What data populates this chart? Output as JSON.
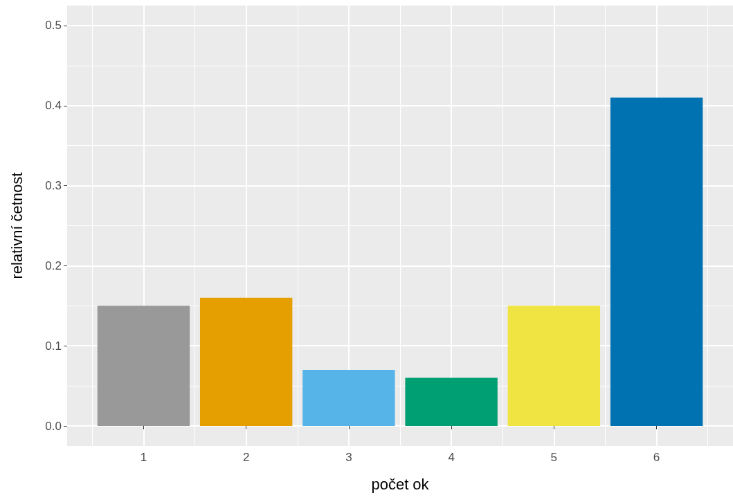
{
  "chart_data": {
    "type": "bar",
    "xlabel": "počet ok",
    "ylabel": "relativní četnost",
    "x": [
      1,
      2,
      3,
      4,
      5,
      6
    ],
    "values": [
      0.15,
      0.16,
      0.07,
      0.06,
      0.15,
      0.41
    ],
    "colors": [
      "#999999",
      "#e69f00",
      "#56b4e9",
      "#009e73",
      "#f0e442",
      "#0072b2"
    ],
    "xlim": [
      0.255,
      6.745
    ],
    "xticks": [
      1,
      2,
      3,
      4,
      5,
      6
    ],
    "ylim": [
      -0.025,
      0.525
    ],
    "yticks": [
      {
        "value": 0,
        "label": "0.0"
      },
      0.1,
      0.2,
      0.3,
      0.4,
      0.5
    ],
    "grid": true
  }
}
